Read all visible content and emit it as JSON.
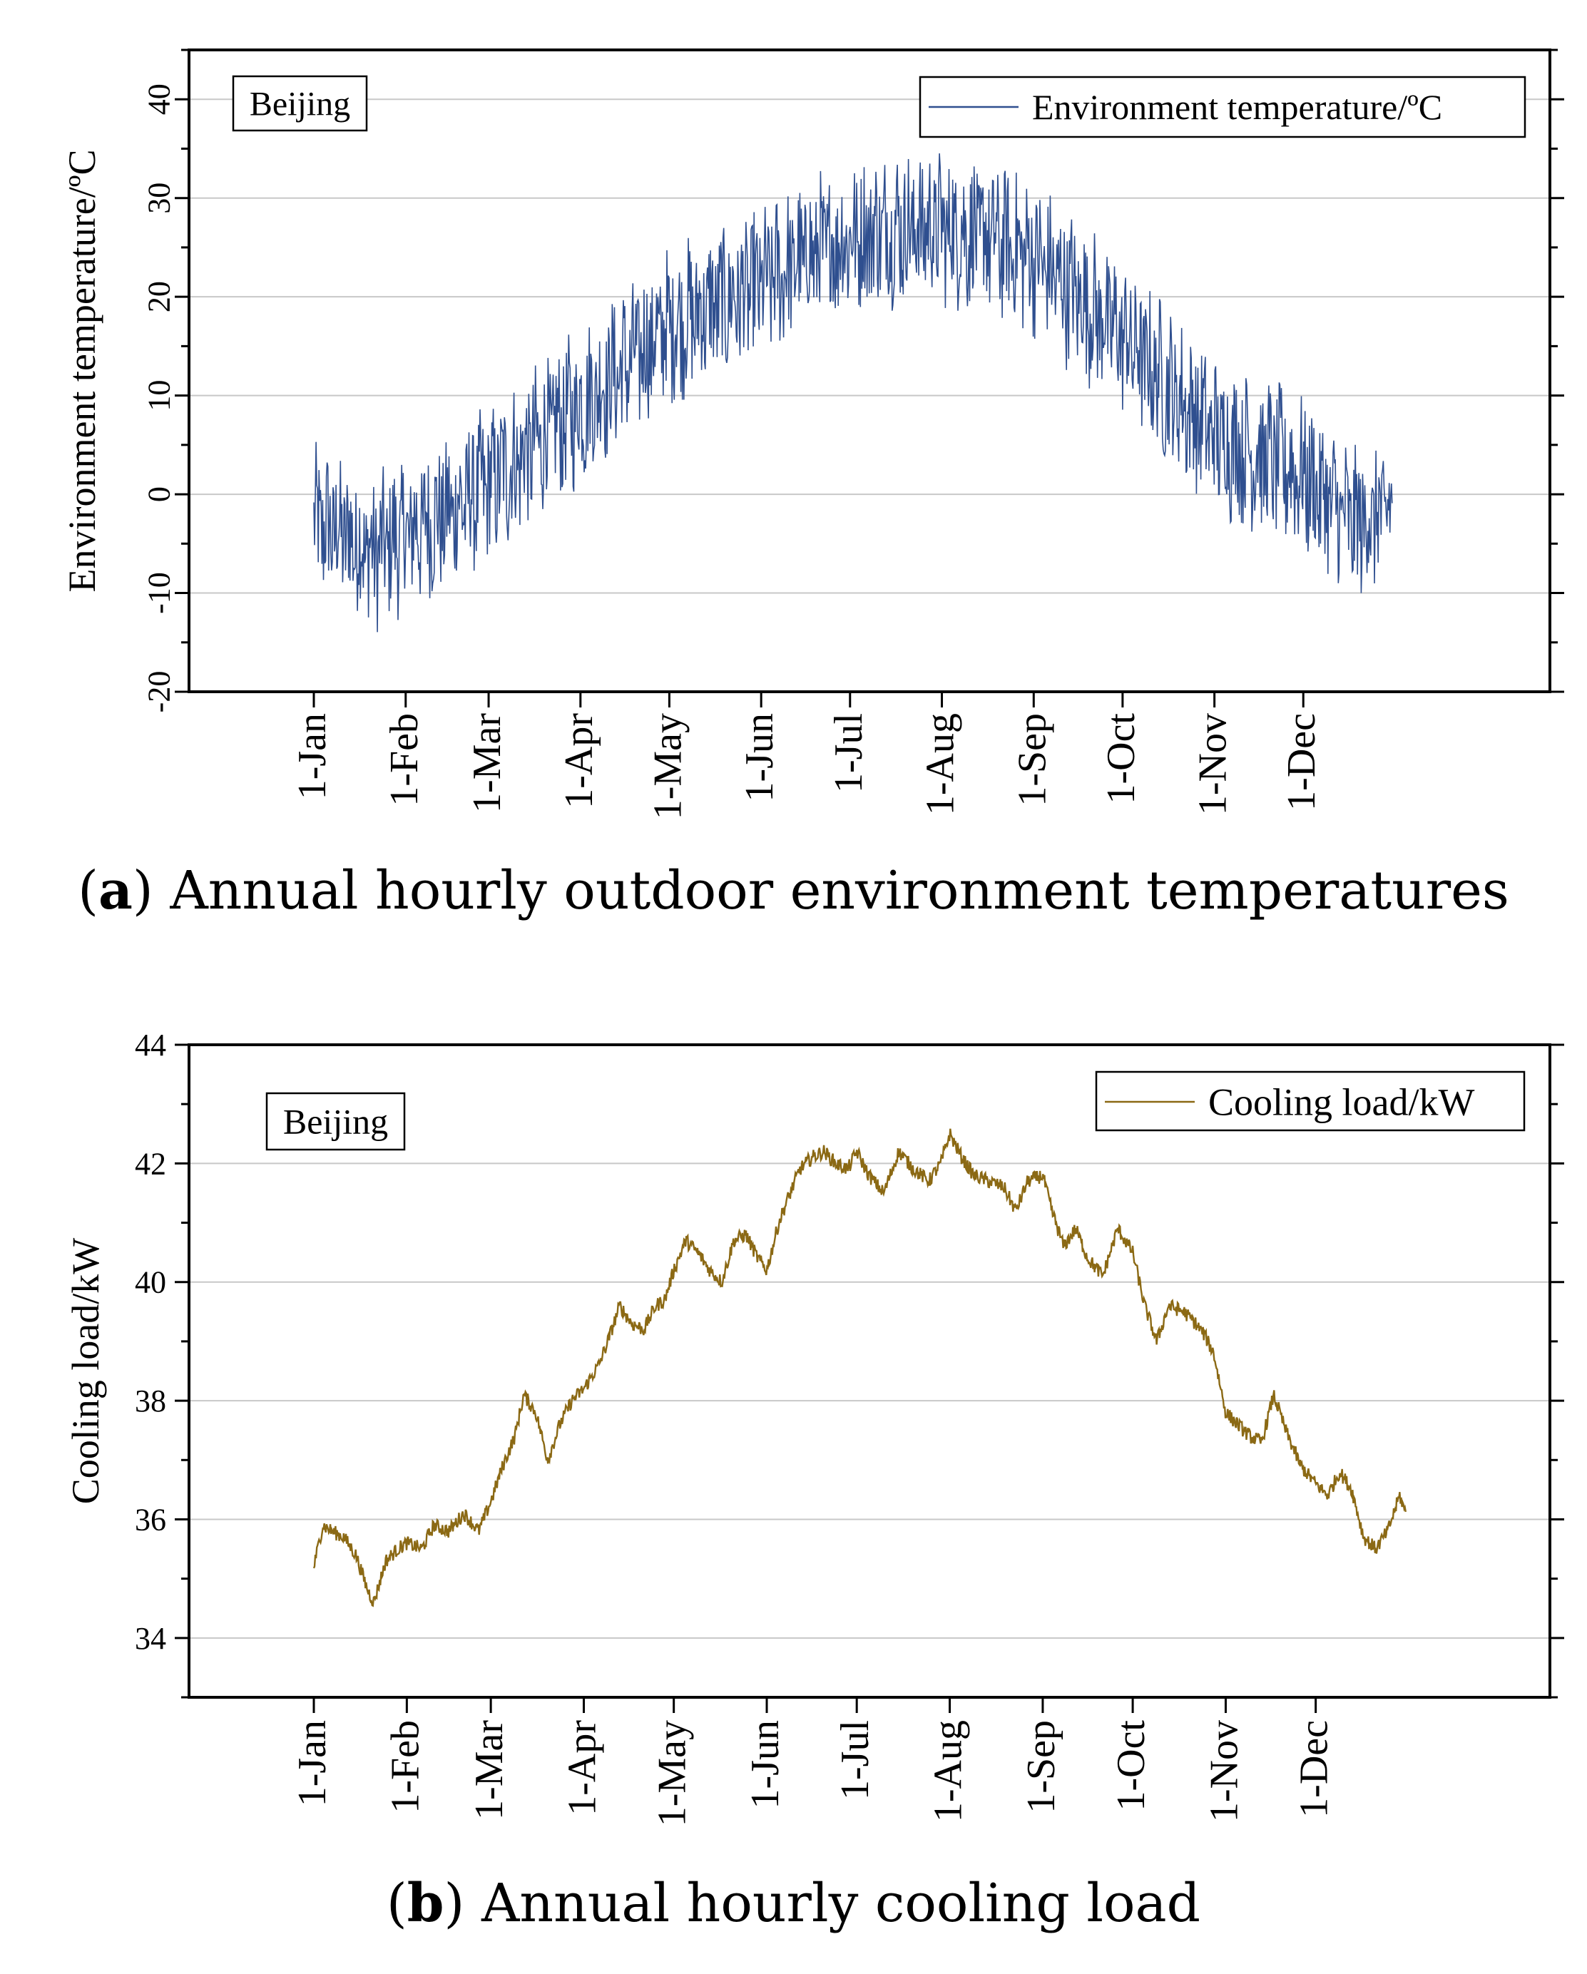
{
  "chart_data": [
    {
      "type": "line",
      "title": "",
      "xlabel": "",
      "ylabel": "Environment temperature/ºC",
      "ylim": [
        -20,
        45
      ],
      "yticks": [
        -20,
        -10,
        0,
        10,
        20,
        30,
        40
      ],
      "grid": true,
      "grid_lines_at": [
        -10,
        0,
        10,
        20,
        30,
        40
      ],
      "x_tick_labels": [
        "1-Jan",
        "1-Feb",
        "1-Mar",
        "1-Apr",
        "1-May",
        "1-Jun",
        "1-Jul",
        "1-Aug",
        "1-Sep",
        "1-Oct",
        "1-Nov",
        "1-Dec"
      ],
      "x_tick_days": [
        0,
        31,
        59,
        90,
        120,
        151,
        181,
        212,
        243,
        273,
        304,
        334
      ],
      "series": [
        {
          "name": "Environment temperature/ºC",
          "color": "#2f4f8f",
          "daily_profile_day": [
            0,
            10,
            20,
            31,
            45,
            59,
            75,
            90,
            105,
            120,
            135,
            151,
            166,
            181,
            196,
            212,
            227,
            243,
            258,
            273,
            288,
            304,
            319,
            334,
            350,
            364
          ],
          "daily_profile_mean": [
            -3,
            -4,
            -6,
            -4,
            -2,
            1,
            5,
            9,
            13,
            17,
            19,
            21,
            24,
            26,
            27,
            27,
            26,
            24,
            20,
            16,
            11,
            6,
            4,
            2,
            -3,
            -2
          ],
          "daily_swing": 7,
          "extremes": {
            "max": 37,
            "min": -14
          }
        }
      ],
      "legend": [
        "Environment temperature/ºC"
      ],
      "legend_position": "top-right",
      "annotation": "Beijing",
      "caption_label": "a",
      "caption_text": " Annual hourly outdoor environment temperatures"
    },
    {
      "type": "line",
      "title": "",
      "xlabel": "",
      "ylabel": "Cooling load/kW",
      "ylim": [
        33,
        44
      ],
      "yticks": [
        34,
        36,
        38,
        40,
        42,
        44
      ],
      "grid": true,
      "grid_lines_at": [
        34,
        36,
        38,
        40,
        42
      ],
      "x_tick_labels": [
        "1-Jan",
        "1-Feb",
        "1-Mar",
        "1-Apr",
        "1-May",
        "1-Jun",
        "1-Jul",
        "1-Aug",
        "1-Sep",
        "1-Oct",
        "1-Nov",
        "1-Dec"
      ],
      "x_tick_days": [
        0,
        31,
        59,
        90,
        120,
        151,
        181,
        212,
        243,
        273,
        304,
        334
      ],
      "series": [
        {
          "name": "Cooling load/kW",
          "color": "#8b6914",
          "x_day": [
            0,
            3,
            6,
            10,
            14,
            18,
            20,
            24,
            28,
            31,
            36,
            40,
            45,
            50,
            55,
            59,
            63,
            67,
            70,
            74,
            78,
            82,
            86,
            90,
            95,
            98,
            102,
            106,
            110,
            114,
            117,
            120,
            124,
            128,
            132,
            136,
            140,
            144,
            148,
            151,
            155,
            158,
            162,
            166,
            170,
            174,
            178,
            181,
            185,
            190,
            195,
            200,
            205,
            209,
            212,
            216,
            220,
            225,
            230,
            234,
            238,
            243,
            246,
            250,
            254,
            258,
            263,
            268,
            273,
            277,
            281,
            285,
            290,
            294,
            297,
            300,
            304,
            308,
            312,
            316,
            320,
            324,
            329,
            334,
            338,
            342,
            346,
            350,
            354,
            358,
            362,
            364
          ],
          "y": [
            35.2,
            35.9,
            35.8,
            35.7,
            35.4,
            34.8,
            34.6,
            35.3,
            35.5,
            35.6,
            35.5,
            35.9,
            35.8,
            36.1,
            35.8,
            36.3,
            36.9,
            37.4,
            38.1,
            37.8,
            37.0,
            37.6,
            38.0,
            38.2,
            38.6,
            39.0,
            39.6,
            39.3,
            39.2,
            39.6,
            39.7,
            40.2,
            40.7,
            40.5,
            40.2,
            40.0,
            40.7,
            40.8,
            40.4,
            40.2,
            41.0,
            41.4,
            41.9,
            42.1,
            42.2,
            42.0,
            41.9,
            42.2,
            41.8,
            41.5,
            42.2,
            41.9,
            41.7,
            42.0,
            42.5,
            42.1,
            41.8,
            41.7,
            41.6,
            41.2,
            41.7,
            41.8,
            41.2,
            40.6,
            40.9,
            40.4,
            40.1,
            40.9,
            40.5,
            39.6,
            39.0,
            39.6,
            39.5,
            39.3,
            39.1,
            38.8,
            37.8,
            37.6,
            37.4,
            37.3,
            38.1,
            37.5,
            36.9,
            36.6,
            36.4,
            36.8,
            36.5,
            35.7,
            35.5,
            35.8,
            36.4,
            36.1
          ],
          "noise": 0.12
        }
      ],
      "legend": [
        "Cooling load/kW"
      ],
      "legend_position": "top-right",
      "annotation": "Beijing",
      "caption_label": "b",
      "caption_text": " Annual hourly cooling load"
    }
  ]
}
